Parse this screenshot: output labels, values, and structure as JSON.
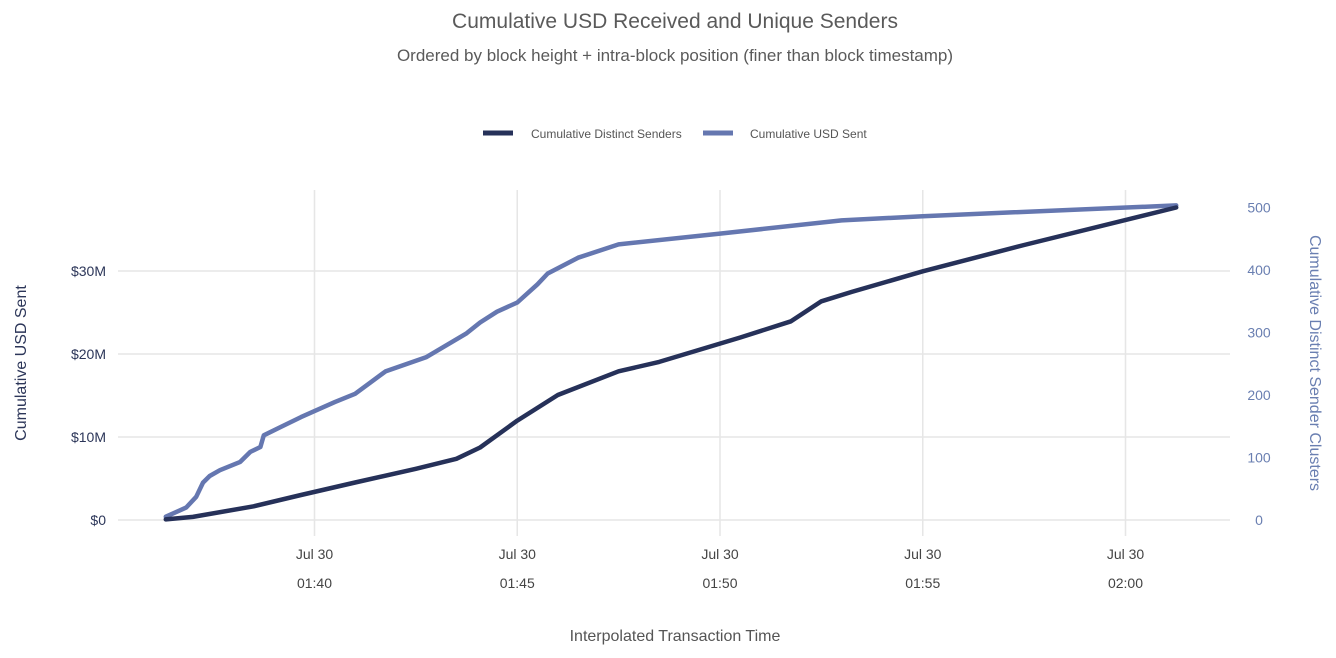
{
  "chart_data": {
    "type": "line",
    "title": "Cumulative USD Received and Unique Senders",
    "subtitle": "Ordered by block height + intra-block position (finer than block timestamp)",
    "xlabel": "Interpolated Transaction Time",
    "ylabel_left": "Cumulative USD Sent",
    "ylabel_right": "Cumulative Distinct Sender Clusters",
    "x_ticks": [
      {
        "date": "Jul 30",
        "time": "01:40"
      },
      {
        "date": "Jul 30",
        "time": "01:45"
      },
      {
        "date": "Jul 30",
        "time": "01:50"
      },
      {
        "date": "Jul 30",
        "time": "01:55"
      },
      {
        "date": "Jul 30",
        "time": "02:00"
      }
    ],
    "y_left_ticks": [
      "$0",
      "$10M",
      "$20M",
      "$30M"
    ],
    "y_left_values": [
      0,
      10,
      20,
      30
    ],
    "y_left_unit": "USD millions",
    "y_left_lim": [
      0,
      40
    ],
    "y_right_ticks": [
      "0",
      "100",
      "200",
      "300",
      "400",
      "500"
    ],
    "y_right_values": [
      0,
      100,
      200,
      300,
      400,
      500
    ],
    "y_right_lim": [
      0,
      500
    ],
    "x_range": [
      "01:36:20",
      "02:01:15"
    ],
    "grid": true,
    "legend_position": "top-center",
    "legend": [
      {
        "name": "Cumulative Distinct Senders",
        "color": "#263159"
      },
      {
        "name": "Cumulative USD Sent",
        "color": "#6577b0"
      }
    ],
    "series": [
      {
        "name": "Cumulative USD Sent",
        "axis": "left",
        "color": "#6577b0",
        "points": [
          [
            "01:36:20",
            0.4
          ],
          [
            "01:36:50",
            1.5
          ],
          [
            "01:37:05",
            2.8
          ],
          [
            "01:37:15",
            4.5
          ],
          [
            "01:37:25",
            5.3
          ],
          [
            "01:37:40",
            6.0
          ],
          [
            "01:38:10",
            7.0
          ],
          [
            "01:38:25",
            8.2
          ],
          [
            "01:38:40",
            8.8
          ],
          [
            "01:38:45",
            10.2
          ],
          [
            "01:39:10",
            11.2
          ],
          [
            "01:39:40",
            12.4
          ],
          [
            "01:40:30",
            14.2
          ],
          [
            "01:41:00",
            15.2
          ],
          [
            "01:41:45",
            17.9
          ],
          [
            "01:42:45",
            19.6
          ],
          [
            "01:43:45",
            22.5
          ],
          [
            "01:44:05",
            23.8
          ],
          [
            "01:44:30",
            25.1
          ],
          [
            "01:45:00",
            26.2
          ],
          [
            "01:45:30",
            28.4
          ],
          [
            "01:45:45",
            29.7
          ],
          [
            "01:46:30",
            31.6
          ],
          [
            "01:47:30",
            33.2
          ],
          [
            "01:50:00",
            34.5
          ],
          [
            "01:53:00",
            36.1
          ],
          [
            "01:55:00",
            36.6
          ],
          [
            "02:01:15",
            37.9
          ]
        ]
      },
      {
        "name": "Cumulative Distinct Senders",
        "axis": "right",
        "color": "#263159",
        "points": [
          [
            "01:36:20",
            1
          ],
          [
            "01:37:00",
            5
          ],
          [
            "01:38:30",
            22
          ],
          [
            "01:39:40",
            40
          ],
          [
            "01:41:00",
            60
          ],
          [
            "01:42:30",
            82
          ],
          [
            "01:43:30",
            98
          ],
          [
            "01:44:05",
            116
          ],
          [
            "01:45:00",
            159
          ],
          [
            "01:46:00",
            200
          ],
          [
            "01:47:30",
            238
          ],
          [
            "01:48:30",
            253
          ],
          [
            "01:50:30",
            292
          ],
          [
            "01:51:45",
            318
          ],
          [
            "01:52:30",
            350
          ],
          [
            "01:53:15",
            365
          ],
          [
            "01:55:00",
            398
          ],
          [
            "01:57:30",
            440
          ],
          [
            "02:01:15",
            500
          ]
        ]
      }
    ]
  }
}
